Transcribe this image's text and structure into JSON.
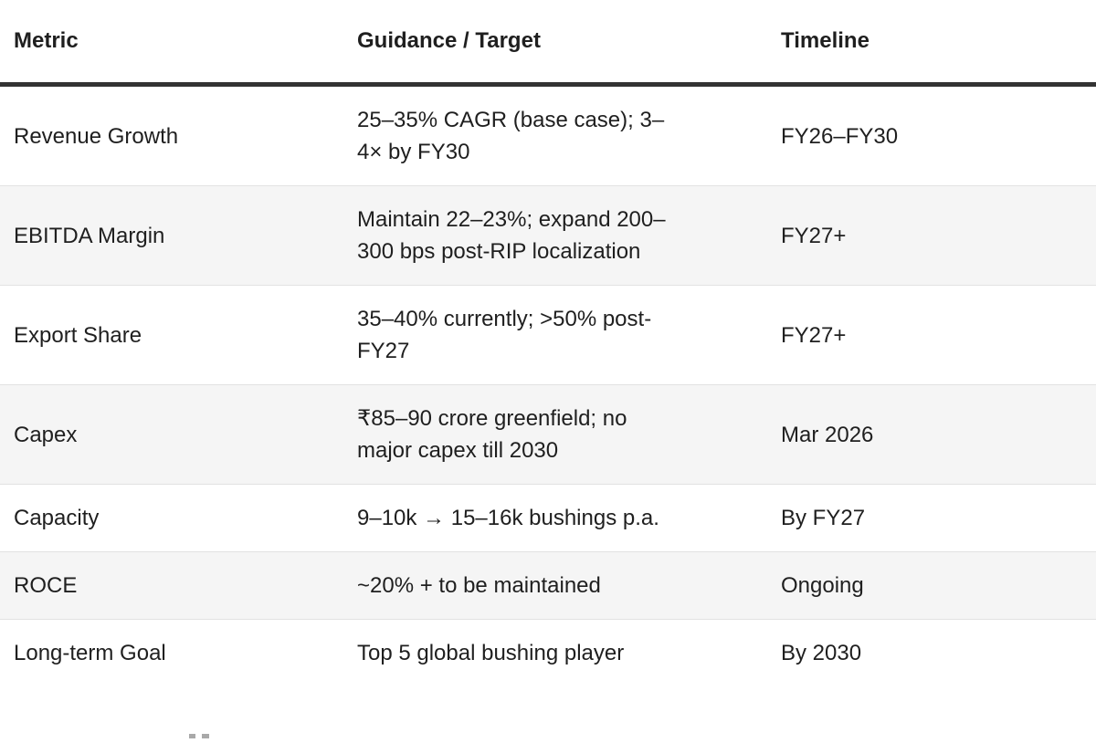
{
  "colors": {
    "text": "#1f1f1f",
    "header_rule": "#333333",
    "row_alt_bg": "#f5f5f5",
    "row_separator": "#e2e2e2",
    "page_bg": "#ffffff"
  },
  "table": {
    "columns": [
      {
        "label": "Metric"
      },
      {
        "label": "Guidance / Target"
      },
      {
        "label": "Timeline"
      }
    ],
    "rows": [
      {
        "metric": "Revenue Growth",
        "guidance": "25–35% CAGR (base case); 3–4× by FY30",
        "timeline": "FY26–FY30"
      },
      {
        "metric": "EBITDA Margin",
        "guidance": "Maintain 22–23%; expand 200–300 bps post-RIP localization",
        "timeline": "FY27+"
      },
      {
        "metric": "Export Share",
        "guidance": "35–40% currently; >50% post-FY27",
        "timeline": "FY27+"
      },
      {
        "metric": "Capex",
        "guidance": "₹85–90 crore greenfield; no major capex till 2030",
        "timeline": "Mar 2026"
      },
      {
        "metric": "Capacity",
        "guidance": "9–10k → 15–16k bushings p.a.",
        "timeline": "By FY27"
      },
      {
        "metric": "ROCE",
        "guidance": "~20% + to be maintained",
        "timeline": "Ongoing"
      },
      {
        "metric": "Long-term Goal",
        "guidance": "Top 5 global bushing player",
        "timeline": "By 2030"
      }
    ]
  }
}
